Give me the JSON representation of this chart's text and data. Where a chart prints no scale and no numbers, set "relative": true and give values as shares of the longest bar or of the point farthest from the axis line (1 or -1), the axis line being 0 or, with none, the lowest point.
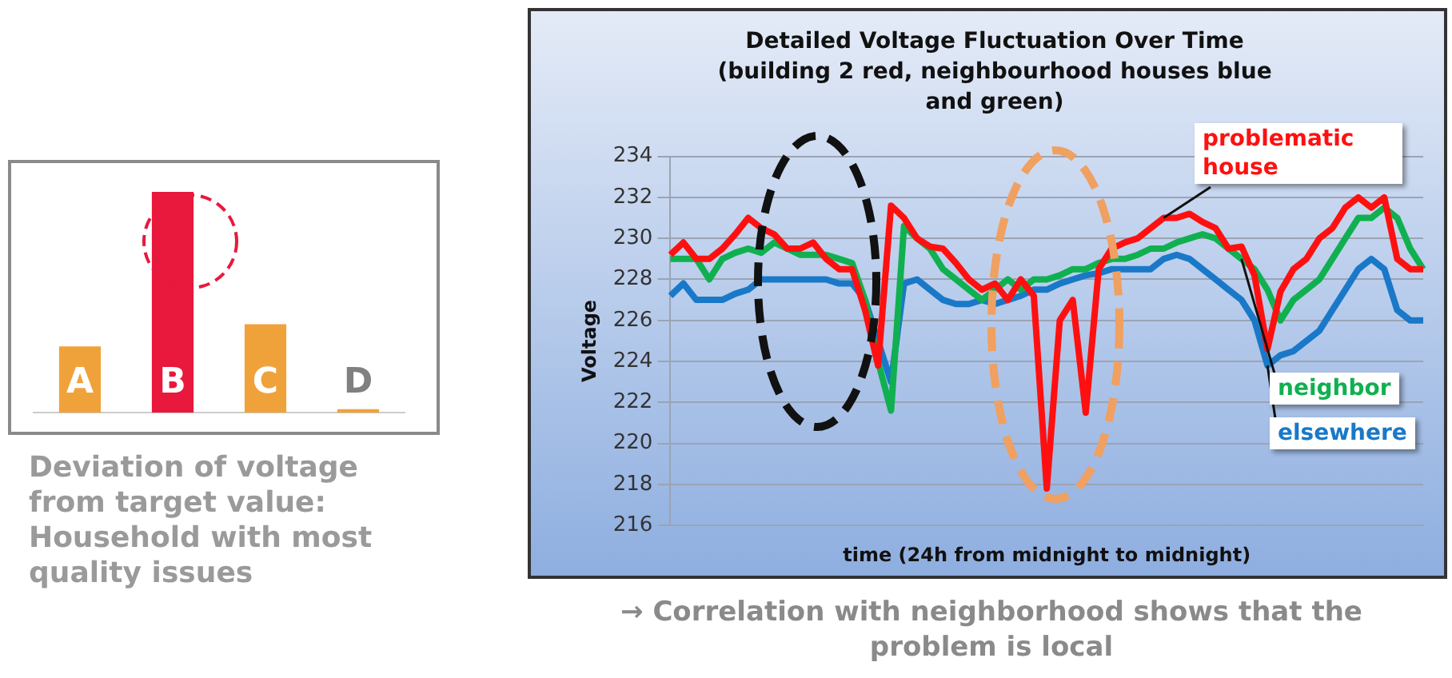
{
  "chart_data": [
    {
      "type": "bar",
      "relative": true,
      "categories": [
        "A",
        "B",
        "C",
        "D"
      ],
      "values": [
        0.3,
        1,
        0.4,
        0.015
      ],
      "colors": [
        "#f0a23a",
        "#e8193c",
        "#f0a23a",
        "#f0a23a"
      ],
      "tick_labels": false,
      "grid": false,
      "legend": false,
      "annotations": [
        "Deviation of voltage from target value: Household with most quality issues"
      ]
    },
    {
      "type": "line",
      "title": "Detailed Voltage Fluctuation  Over Time",
      "subtitle": "(building 2 red, neighbourhood houses blue and green)",
      "xlabel": "time (24h from midnight to midnight)",
      "ylabel": "Voltage",
      "categories": [
        null,
        null,
        null,
        null,
        null,
        null,
        null,
        null,
        null,
        null,
        null,
        null,
        null,
        null,
        null,
        null,
        null,
        null,
        null,
        null,
        null,
        null,
        null,
        null,
        null,
        null,
        null,
        null,
        null,
        null,
        null,
        null,
        null,
        null,
        null,
        null,
        null,
        null,
        null,
        null,
        null,
        null,
        null,
        null,
        null,
        null,
        null,
        null,
        null,
        null,
        null,
        null,
        null,
        null,
        null,
        null,
        null,
        null,
        null
      ],
      "ylim": [
        216,
        234
      ],
      "yticks": [
        216,
        218,
        220,
        222,
        224,
        226,
        228,
        230,
        232,
        234
      ],
      "grid": "y",
      "tick_labels": "y",
      "legend": false,
      "marker": "none",
      "line_style": "solid",
      "series": [
        {
          "name": "problematic house",
          "color": "#ff1010",
          "values": [
            229.2,
            229.8,
            229,
            229,
            229.5,
            230.2,
            231,
            230.5,
            230.2,
            229.5,
            229.5,
            229.8,
            229,
            228.5,
            228.5,
            226.5,
            223.8,
            231.6,
            231,
            230,
            229.6,
            229.5,
            228.8,
            228,
            227.5,
            227.8,
            227,
            228,
            227.2,
            217.8,
            226,
            227,
            221.5,
            228.5,
            229.5,
            229.8,
            230,
            230.5,
            231,
            231,
            231.2,
            230.8,
            230.5,
            229.5,
            229.6,
            228.2,
            224.6,
            227.4,
            228.5,
            229,
            230,
            230.5,
            231.5,
            232,
            231.5,
            232,
            229,
            228.5,
            228.5
          ]
        },
        {
          "name": "neighbor",
          "color": "#10b050",
          "values": [
            229,
            229,
            229,
            228,
            229,
            229.3,
            229.5,
            229.3,
            229.8,
            229.5,
            229.2,
            229.2,
            229.2,
            229,
            228.8,
            227,
            224,
            221.6,
            230.6,
            230,
            229.5,
            228.5,
            228,
            227.5,
            227,
            227.5,
            228,
            227.5,
            228,
            228,
            228.2,
            228.5,
            228.5,
            228.8,
            229,
            229,
            229.2,
            229.5,
            229.5,
            229.8,
            230,
            230.2,
            230,
            229.5,
            229,
            228.5,
            227.5,
            226,
            227,
            227.5,
            228,
            229,
            230,
            231,
            231,
            231.5,
            231,
            229.5,
            228.5
          ]
        },
        {
          "name": "elsewhere",
          "color": "#1a78c8",
          "values": [
            227.2,
            227.8,
            227,
            227,
            227,
            227.3,
            227.5,
            228,
            228,
            228,
            228,
            228,
            228,
            227.8,
            227.8,
            227,
            225,
            223,
            227.8,
            228,
            227.5,
            227,
            226.8,
            226.8,
            227,
            226.8,
            227,
            227.2,
            227.5,
            227.5,
            227.8,
            228,
            228.2,
            228.3,
            228.5,
            228.5,
            228.5,
            228.5,
            229,
            229.2,
            229,
            228.5,
            228,
            227.5,
            227,
            226,
            223.8,
            224.3,
            224.5,
            225,
            225.5,
            226.5,
            227.5,
            228.5,
            229,
            228.5,
            226.5,
            226,
            226
          ]
        }
      ],
      "annotations": [
        "→ Correlation with neighborhood shows that the problem is local"
      ]
    }
  ]
}
